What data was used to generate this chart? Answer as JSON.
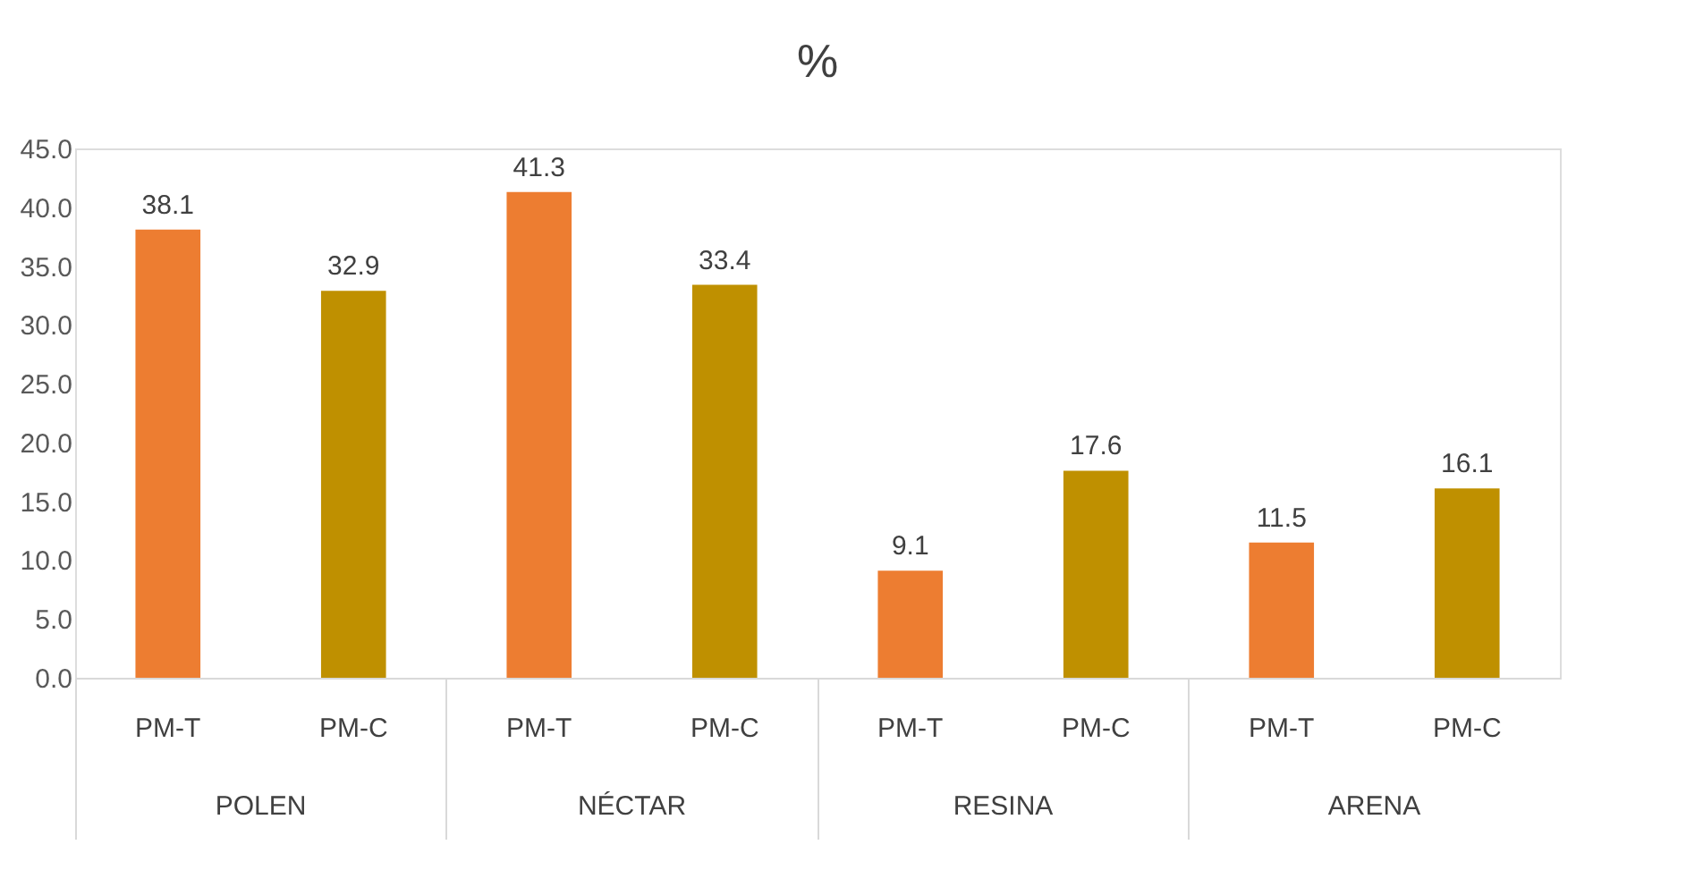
{
  "chart_data": {
    "type": "bar",
    "title": "%",
    "categories": [
      "POLEN",
      "NÉCTAR",
      "RESINA",
      "ARENA"
    ],
    "series": [
      {
        "name": "PM-T",
        "color": "#ed7d31",
        "values": [
          38.1,
          41.3,
          9.1,
          11.5
        ]
      },
      {
        "name": "PM-C",
        "color": "#bf9000",
        "values": [
          32.9,
          33.4,
          17.6,
          16.1
        ]
      }
    ],
    "ylim": [
      0,
      45
    ],
    "yticks": [
      {
        "value": 0,
        "label": "0.0"
      },
      {
        "value": 5,
        "label": "5.0"
      },
      {
        "value": 10,
        "label": "10.0"
      },
      {
        "value": 15,
        "label": "15.0"
      },
      {
        "value": 20,
        "label": "20.0"
      },
      {
        "value": 25,
        "label": "25.0"
      },
      {
        "value": 30,
        "label": "30.0"
      },
      {
        "value": 35,
        "label": "35.0"
      },
      {
        "value": 40,
        "label": "40.0"
      },
      {
        "value": 45,
        "label": "45.0"
      }
    ],
    "data_labels": true,
    "grid": false,
    "legend": false
  }
}
